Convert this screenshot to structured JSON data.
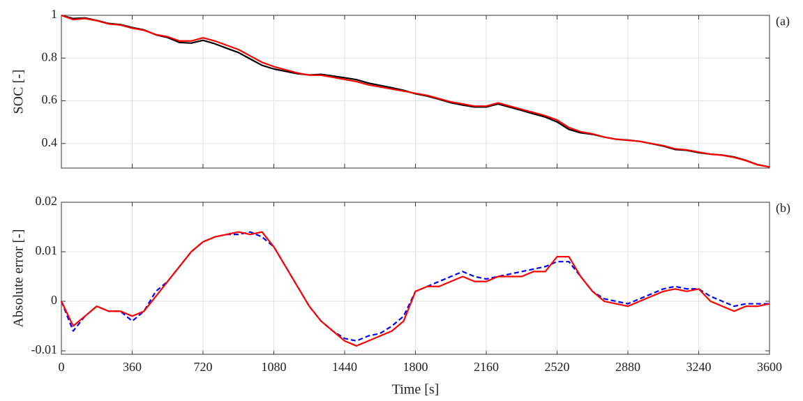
{
  "chart_data": [
    {
      "type": "line",
      "ylabel": "SOC [-]",
      "annotation": "(a)",
      "x": [
        0,
        60,
        120,
        180,
        240,
        300,
        360,
        420,
        480,
        540,
        600,
        660,
        720,
        780,
        840,
        900,
        960,
        1020,
        1080,
        1140,
        1200,
        1260,
        1320,
        1380,
        1440,
        1500,
        1560,
        1620,
        1680,
        1740,
        1800,
        1860,
        1920,
        1980,
        2040,
        2100,
        2160,
        2220,
        2280,
        2340,
        2400,
        2460,
        2520,
        2580,
        2640,
        2700,
        2760,
        2820,
        2880,
        2940,
        3000,
        3060,
        3120,
        3180,
        3240,
        3300,
        3360,
        3420,
        3480,
        3540,
        3600
      ],
      "series": [
        {
          "color": "#000000",
          "dash": false,
          "values": [
            1.0,
            0.985,
            0.988,
            0.976,
            0.962,
            0.957,
            0.943,
            0.932,
            0.909,
            0.896,
            0.873,
            0.87,
            0.883,
            0.867,
            0.846,
            0.826,
            0.796,
            0.766,
            0.749,
            0.738,
            0.727,
            0.721,
            0.724,
            0.716,
            0.708,
            0.699,
            0.683,
            0.672,
            0.661,
            0.649,
            0.633,
            0.622,
            0.607,
            0.591,
            0.58,
            0.571,
            0.571,
            0.585,
            0.57,
            0.555,
            0.539,
            0.524,
            0.501,
            0.466,
            0.45,
            0.443,
            0.43,
            0.42,
            0.416,
            0.41,
            0.399,
            0.388,
            0.372,
            0.368,
            0.357,
            0.35,
            0.346,
            0.337,
            0.321,
            0.301,
            0.29
          ]
        },
        {
          "color": "#ff0000",
          "dash": false,
          "values": [
            1.0,
            0.98,
            0.985,
            0.975,
            0.96,
            0.955,
            0.94,
            0.93,
            0.91,
            0.9,
            0.88,
            0.88,
            0.895,
            0.88,
            0.86,
            0.84,
            0.81,
            0.78,
            0.76,
            0.745,
            0.73,
            0.72,
            0.72,
            0.71,
            0.7,
            0.69,
            0.675,
            0.665,
            0.655,
            0.645,
            0.635,
            0.625,
            0.61,
            0.595,
            0.585,
            0.575,
            0.575,
            0.59,
            0.575,
            0.56,
            0.545,
            0.53,
            0.51,
            0.475,
            0.455,
            0.445,
            0.43,
            0.42,
            0.415,
            0.41,
            0.4,
            0.39,
            0.375,
            0.37,
            0.36,
            0.35,
            0.345,
            0.335,
            0.32,
            0.3,
            0.29
          ]
        }
      ],
      "xlim": [
        0,
        3600
      ],
      "xticks": [
        0,
        360,
        720,
        1080,
        1440,
        1800,
        2160,
        2520,
        2880,
        3240,
        3600
      ],
      "show_xtick_labels": false,
      "ylim": [
        0.285,
        1
      ],
      "yticks": [
        0.4,
        0.6,
        0.8,
        1
      ],
      "grid": true
    },
    {
      "type": "line",
      "ylabel": "Absolute error [-]",
      "xlabel": "Time [s]",
      "annotation": "(b)",
      "x": [
        0,
        60,
        120,
        180,
        240,
        300,
        360,
        420,
        480,
        540,
        600,
        660,
        720,
        780,
        840,
        900,
        960,
        1020,
        1080,
        1140,
        1200,
        1260,
        1320,
        1380,
        1440,
        1500,
        1560,
        1620,
        1680,
        1740,
        1800,
        1860,
        1920,
        1980,
        2040,
        2100,
        2160,
        2220,
        2280,
        2340,
        2400,
        2460,
        2520,
        2580,
        2640,
        2700,
        2760,
        2820,
        2880,
        2940,
        3000,
        3060,
        3120,
        3180,
        3240,
        3300,
        3360,
        3420,
        3480,
        3540,
        3600
      ],
      "series": [
        {
          "color": "#0000ff",
          "dash": true,
          "values": [
            0,
            -0.006,
            -0.003,
            -0.001,
            -0.002,
            -0.002,
            -0.004,
            -0.002,
            0.002,
            0.004,
            0.007,
            0.01,
            0.012,
            0.013,
            0.0135,
            0.0135,
            0.014,
            0.013,
            0.011,
            0.007,
            0.003,
            -0.001,
            -0.004,
            -0.006,
            -0.0075,
            -0.008,
            -0.007,
            -0.0065,
            -0.005,
            -0.003,
            0.002,
            0.003,
            0.004,
            0.005,
            0.006,
            0.005,
            0.0045,
            0.005,
            0.0055,
            0.006,
            0.0065,
            0.007,
            0.008,
            0.008,
            0.005,
            0.002,
            0.0005,
            0,
            -0.0005,
            0.0005,
            0.0015,
            0.0025,
            0.003,
            0.0025,
            0.0025,
            0.001,
            0,
            -0.001,
            -0.0005,
            -0.0005,
            -0.0005
          ]
        },
        {
          "color": "#ff0000",
          "dash": false,
          "values": [
            0,
            -0.005,
            -0.003,
            -0.001,
            -0.002,
            -0.002,
            -0.003,
            -0.002,
            0.001,
            0.004,
            0.007,
            0.01,
            0.012,
            0.013,
            0.0135,
            0.014,
            0.0135,
            0.014,
            0.011,
            0.007,
            0.003,
            -0.001,
            -0.004,
            -0.006,
            -0.008,
            -0.009,
            -0.008,
            -0.007,
            -0.006,
            -0.004,
            0.002,
            0.003,
            0.003,
            0.004,
            0.005,
            0.004,
            0.004,
            0.005,
            0.005,
            0.005,
            0.006,
            0.006,
            0.009,
            0.009,
            0.005,
            0.002,
            0,
            -0.0005,
            -0.001,
            0,
            0.001,
            0.002,
            0.0025,
            0.002,
            0.0025,
            0,
            -0.001,
            -0.002,
            -0.001,
            -0.001,
            -0.0005
          ]
        }
      ],
      "xlim": [
        0,
        3600
      ],
      "xticks": [
        0,
        360,
        720,
        1080,
        1440,
        1800,
        2160,
        2520,
        2880,
        3240,
        3600
      ],
      "show_xtick_labels": true,
      "ylim": [
        -0.0107,
        0.02
      ],
      "yticks": [
        -0.01,
        0,
        0.01,
        0.02
      ],
      "grid": true
    }
  ]
}
